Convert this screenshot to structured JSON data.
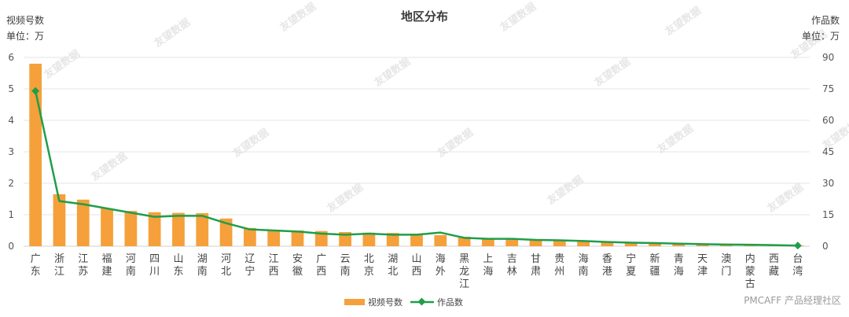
{
  "chart_data": {
    "type": "bar",
    "title": "地区分布",
    "left_axis": {
      "label": "视频号数",
      "unit": "单位：万",
      "ylim": [
        0,
        6
      ],
      "ticks": [
        0,
        1,
        2,
        3,
        4,
        5,
        6
      ]
    },
    "right_axis": {
      "label": "作品数",
      "unit": "单位：万",
      "ylim": [
        0,
        90
      ],
      "ticks": [
        0,
        15,
        30,
        45,
        60,
        75,
        90
      ]
    },
    "categories": [
      "广东",
      "浙江",
      "江苏",
      "福建",
      "河南",
      "四川",
      "山东",
      "湖南",
      "河北",
      "辽宁",
      "江西",
      "安徽",
      "广西",
      "云南",
      "北京",
      "湖北",
      "山西",
      "海外",
      "黑龙江",
      "上海",
      "吉林",
      "甘肃",
      "贵州",
      "海南",
      "香港",
      "宁夏",
      "新疆",
      "青海",
      "天津",
      "澳门",
      "内蒙古",
      "西藏",
      "台湾"
    ],
    "series": [
      {
        "name": "视频号数",
        "type": "bar",
        "axis": "left",
        "color": "#f5a03a",
        "values": [
          5.8,
          1.65,
          1.48,
          1.2,
          1.12,
          1.08,
          1.06,
          1.05,
          0.88,
          0.58,
          0.52,
          0.5,
          0.48,
          0.45,
          0.43,
          0.42,
          0.4,
          0.35,
          0.3,
          0.25,
          0.24,
          0.22,
          0.19,
          0.16,
          0.13,
          0.11,
          0.1,
          0.08,
          0.07,
          0.05,
          0.04,
          0.03,
          0.02
        ]
      },
      {
        "name": "作品数",
        "type": "line",
        "axis": "right",
        "color": "#1f9e4a",
        "values": [
          74,
          21.5,
          20,
          18,
          16,
          14,
          14.5,
          14.5,
          11,
          8,
          7.5,
          7,
          6,
          5.5,
          6,
          5.5,
          5.5,
          6.5,
          4,
          3.5,
          3.5,
          3,
          2.8,
          2.5,
          2,
          1.7,
          1.5,
          1.2,
          1,
          0.8,
          0.7,
          0.5,
          0.3
        ]
      }
    ],
    "grid": true,
    "legend_position": "bottom-center"
  },
  "watermark": {
    "text": "友望数据"
  },
  "credit": {
    "text": "PMCAFF 产品经理社区"
  }
}
